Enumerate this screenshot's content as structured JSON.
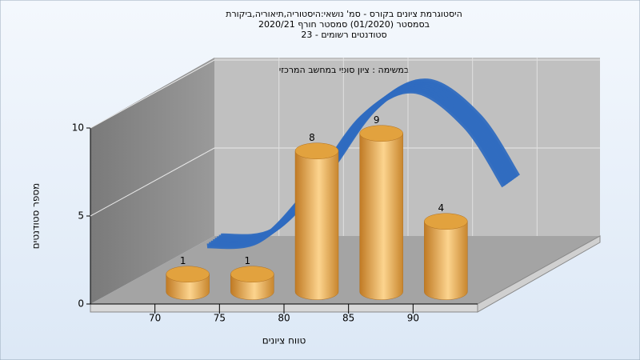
{
  "chart_data": {
    "type": "bar",
    "title": [
      "היסטוגרמת ציונים בקורס - סמ' נושאי:היסטוריה,תיאוריה,ביקורת",
      "בסמסטר  (01/2020)  סמסטר חורף  2020/21",
      "סטודנטים רשומים - 23"
    ],
    "annotation": "במשימה : ציון סופי במחשב המרכזי",
    "x_label": "טווח ציונים",
    "y_label": "מספר סטודנטים",
    "x": [
      70,
      75,
      80,
      85,
      90
    ],
    "values": [
      1,
      1,
      8,
      9,
      4
    ],
    "color": "#e2a23e",
    "curve": {
      "color": "#2f6cc0",
      "x": [
        66,
        70,
        74,
        78,
        82,
        86,
        89
      ],
      "values": [
        0.2,
        0.5,
        3.5,
        7.5,
        9,
        7,
        3.6
      ]
    },
    "xlim": [
      65,
      95
    ],
    "xticks": [
      70,
      75,
      80,
      85,
      90
    ],
    "ylim": [
      0,
      10
    ],
    "yticks": [
      0,
      5,
      10
    ],
    "grid": true
  }
}
